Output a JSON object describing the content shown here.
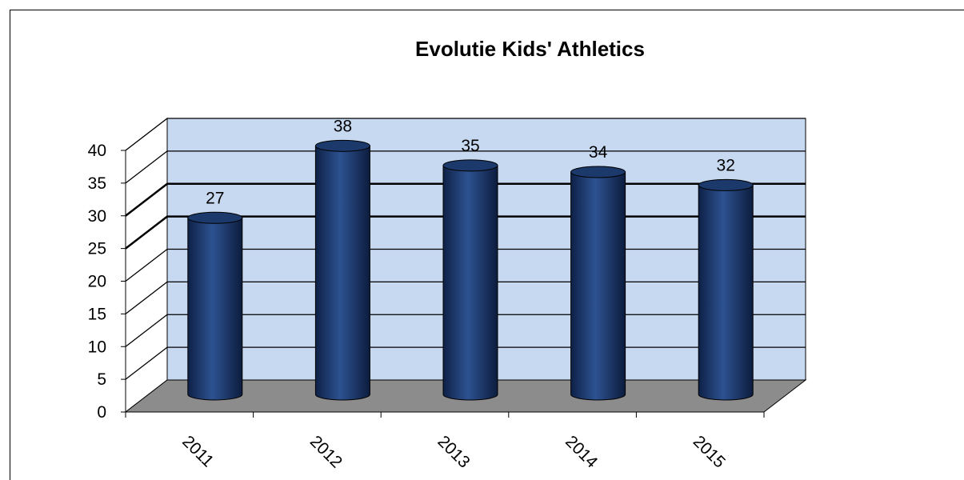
{
  "chart_data": {
    "type": "bar",
    "title": "Evolutie Kids' Athletics",
    "categories": [
      "2011",
      "2012",
      "2013",
      "2014",
      "2015"
    ],
    "values": [
      27,
      38,
      35,
      34,
      32
    ],
    "ylim": [
      0,
      40
    ],
    "yticks": [
      0,
      5,
      10,
      15,
      20,
      25,
      30,
      35,
      40
    ],
    "grid": true,
    "legend": "none",
    "colors": {
      "bar": "#1b3a6b",
      "back_wall": "#c6d9f1",
      "floor": "#8c8c8c"
    }
  }
}
